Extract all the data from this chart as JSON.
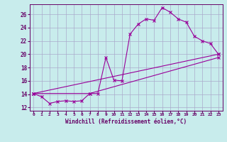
{
  "xlabel": "Windchill (Refroidissement éolien,°C)",
  "background_color": "#c8ecec",
  "grid_color": "#aaaacc",
  "line_color": "#990099",
  "xlim": [
    -0.5,
    23.5
  ],
  "ylim": [
    11.5,
    27.5
  ],
  "xtick_labels": [
    "0",
    "1",
    "2",
    "3",
    "4",
    "5",
    "6",
    "7",
    "8",
    "9",
    "10",
    "11",
    "12",
    "13",
    "14",
    "15",
    "16",
    "17",
    "18",
    "19",
    "20",
    "21",
    "22",
    "23"
  ],
  "xtick_pos": [
    0,
    1,
    2,
    3,
    4,
    5,
    6,
    7,
    8,
    9,
    10,
    11,
    12,
    13,
    14,
    15,
    16,
    17,
    18,
    19,
    20,
    21,
    22,
    23
  ],
  "yticks": [
    12,
    14,
    16,
    18,
    20,
    22,
    24,
    26
  ],
  "series": [
    [
      0,
      14.1
    ],
    [
      1,
      13.6
    ],
    [
      2,
      12.6
    ],
    [
      3,
      12.9
    ],
    [
      4,
      13.0
    ],
    [
      5,
      12.9
    ],
    [
      6,
      13.0
    ],
    [
      7,
      14.1
    ],
    [
      8,
      14.1
    ],
    [
      9,
      19.5
    ],
    [
      10,
      16.1
    ],
    [
      11,
      16.0
    ],
    [
      12,
      23.0
    ],
    [
      13,
      24.5
    ],
    [
      14,
      25.3
    ],
    [
      15,
      25.1
    ],
    [
      16,
      27.0
    ],
    [
      17,
      26.3
    ],
    [
      18,
      25.3
    ],
    [
      19,
      24.8
    ],
    [
      20,
      22.7
    ],
    [
      21,
      22.0
    ],
    [
      22,
      21.6
    ],
    [
      23,
      20.0
    ]
  ],
  "series2": [
    [
      0,
      14.1
    ],
    [
      7,
      14.1
    ],
    [
      23,
      19.5
    ]
  ],
  "series3": [
    [
      0,
      14.1
    ],
    [
      23,
      20.0
    ]
  ]
}
